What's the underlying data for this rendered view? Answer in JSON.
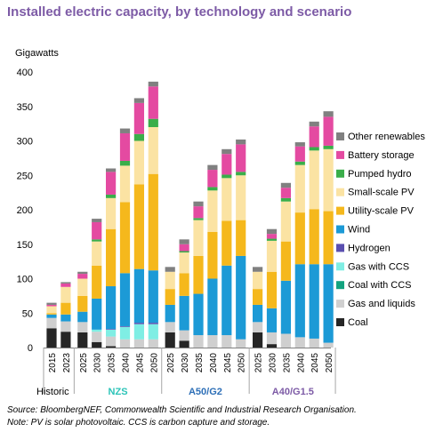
{
  "chart_data": {
    "type": "bar",
    "stacked": true,
    "title": "Installed electric capacity, by technology and scenario",
    "ylabel": "Gigawatts",
    "ylim": [
      0,
      400
    ],
    "yticks": [
      0,
      50,
      100,
      150,
      200,
      250,
      300,
      350,
      400
    ],
    "grid": false,
    "legend_position": "right",
    "groups": [
      {
        "label": "Historic",
        "label_color": "#000000",
        "years": [
          "2015",
          "2023"
        ]
      },
      {
        "label": "NZS",
        "label_color": "#2cc4b8",
        "years": [
          "2025",
          "2030",
          "2035",
          "2040",
          "2045",
          "2050"
        ]
      },
      {
        "label": "A50/G2",
        "label_color": "#2d6fb7",
        "years": [
          "2025",
          "2030",
          "2035",
          "2040",
          "2045",
          "2050"
        ]
      },
      {
        "label": "A40/G1.5",
        "label_color": "#7d5ba6",
        "years": [
          "2025",
          "2030",
          "2035",
          "2040",
          "2045",
          "2050"
        ]
      }
    ],
    "series": [
      {
        "name": "Coal",
        "color": "#262626",
        "values": [
          28,
          23,
          22,
          8,
          2,
          0,
          0,
          0,
          22,
          10,
          0,
          0,
          0,
          0,
          22,
          5,
          0,
          0,
          0,
          0
        ]
      },
      {
        "name": "Gas and liquids",
        "color": "#cfcfcf",
        "values": [
          15,
          15,
          15,
          15,
          14,
          12,
          12,
          12,
          15,
          15,
          18,
          18,
          18,
          12,
          15,
          17,
          20,
          15,
          13,
          7
        ]
      },
      {
        "name": "Coal with CCS",
        "color": "#12a37f",
        "values": [
          0,
          0,
          0,
          0,
          0,
          0,
          0,
          0,
          0,
          0,
          0,
          0,
          0,
          0,
          0,
          0,
          0,
          0,
          0,
          0
        ]
      },
      {
        "name": "Gas with CCS",
        "color": "#7feee4",
        "values": [
          0,
          0,
          0,
          3,
          10,
          18,
          22,
          22,
          0,
          0,
          0,
          0,
          0,
          0,
          0,
          0,
          0,
          0,
          0,
          0
        ]
      },
      {
        "name": "Hydrogen",
        "color": "#5a4fb0",
        "values": [
          0,
          0,
          0,
          0,
          1,
          1,
          2,
          2,
          0,
          0,
          0,
          0,
          0,
          0,
          0,
          0,
          0,
          0,
          0,
          0
        ]
      },
      {
        "name": "Wind",
        "color": "#1c9ad6",
        "values": [
          5,
          10,
          15,
          45,
          62,
          77,
          78,
          76,
          25,
          50,
          60,
          82,
          101,
          121,
          25,
          35,
          77,
          106,
          108,
          114
        ]
      },
      {
        "name": "Utility-scale PV",
        "color": "#f5b81c",
        "values": [
          2,
          17,
          23,
          48,
          83,
          103,
          123,
          140,
          23,
          33,
          55,
          68,
          65,
          52,
          23,
          53,
          57,
          75,
          80,
          77
        ]
      },
      {
        "name": "Small-scale PV",
        "color": "#fbe3a3",
        "values": [
          10,
          23,
          25,
          35,
          45,
          53,
          63,
          68,
          25,
          30,
          52,
          60,
          62,
          65,
          25,
          45,
          58,
          69,
          85,
          90
        ]
      },
      {
        "name": "Pumped hydro",
        "color": "#3aae4a",
        "values": [
          0,
          0,
          0,
          3,
          5,
          7,
          10,
          12,
          0,
          2,
          3,
          5,
          5,
          5,
          0,
          3,
          5,
          5,
          5,
          5
        ]
      },
      {
        "name": "Battery storage",
        "color": "#e44aa1",
        "values": [
          2,
          5,
          7,
          25,
          33,
          40,
          45,
          47,
          0,
          10,
          17,
          25,
          30,
          40,
          0,
          7,
          15,
          22,
          30,
          42
        ]
      },
      {
        "name": "Other renewables",
        "color": "#808080",
        "values": [
          3,
          2,
          3,
          5,
          5,
          7,
          7,
          7,
          7,
          7,
          7,
          7,
          7,
          7,
          7,
          7,
          7,
          6,
          7,
          8
        ]
      }
    ]
  },
  "footnote": {
    "source": "Source: BloombergNEF, Commonwealth Scientific and Industrial Research Organisation.",
    "note": "Note: PV is solar photovoltaic. CCS is carbon capture and storage."
  }
}
